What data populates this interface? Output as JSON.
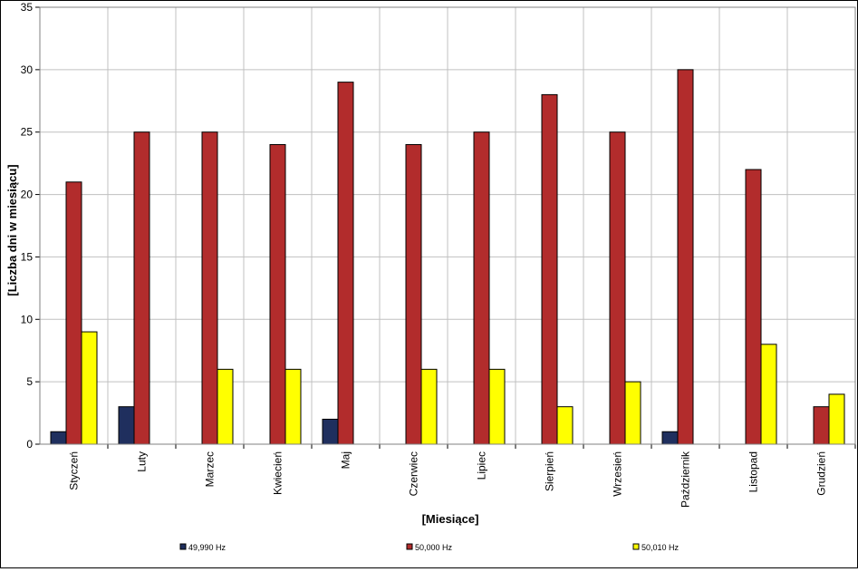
{
  "chart_data": {
    "type": "bar",
    "xlabel": "[Miesiące]",
    "ylabel": "[Liczba dni w miesiącu]",
    "ylim": [
      0,
      35
    ],
    "yticks": [
      0,
      5,
      10,
      15,
      20,
      25,
      30,
      35
    ],
    "grid": true,
    "legend_position": "bottom",
    "categories": [
      "Styczeń",
      "Luty",
      "Marzec",
      "Kwiecień",
      "Maj",
      "Czerwiec",
      "Lipiec",
      "Sierpień",
      "Wrzesień",
      "Październik",
      "Listopad",
      "Grudzień"
    ],
    "series": [
      {
        "name": "49,990 Hz",
        "color": "#1f2f5e",
        "values": [
          1,
          3,
          0,
          0,
          2,
          0,
          0,
          0,
          0,
          1,
          0,
          0
        ]
      },
      {
        "name": "50,000 Hz",
        "color": "#b22c2c",
        "values": [
          21,
          25,
          25,
          24,
          29,
          24,
          25,
          28,
          25,
          30,
          22,
          3
        ]
      },
      {
        "name": "50,010 Hz",
        "color": "#ffff00",
        "values": [
          9,
          0,
          6,
          6,
          0,
          6,
          6,
          3,
          5,
          0,
          8,
          4
        ]
      }
    ]
  }
}
